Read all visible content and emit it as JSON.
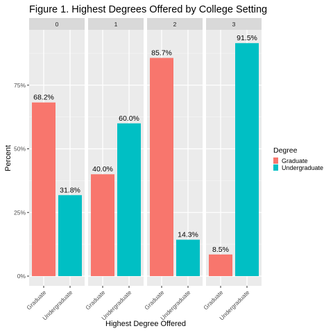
{
  "chart_data": {
    "type": "bar",
    "title": "Figure 1. Highest Degrees Offered by College Setting",
    "xlabel": "Highest Degree Offered",
    "ylabel": "Percent",
    "ylim": [
      0,
      1
    ],
    "y_ticks": [
      0,
      0.25,
      0.5,
      0.75
    ],
    "y_tick_labels": [
      "0%",
      "25%",
      "50%",
      "75%"
    ],
    "categories": [
      "Graduate",
      "Undergraduate"
    ],
    "panels": [
      {
        "label": "0",
        "values": [
          0.682,
          0.318
        ],
        "labels": [
          "68.2%",
          "31.8%"
        ]
      },
      {
        "label": "1",
        "values": [
          0.4,
          0.6
        ],
        "labels": [
          "40.0%",
          "60.0%"
        ]
      },
      {
        "label": "2",
        "values": [
          0.857,
          0.143
        ],
        "labels": [
          "85.7%",
          "14.3%"
        ]
      },
      {
        "label": "3",
        "values": [
          0.085,
          0.915
        ],
        "labels": [
          "8.5%",
          "91.5%"
        ]
      }
    ],
    "legend": {
      "title": "Degree",
      "position": "right",
      "entries": [
        {
          "name": "Graduate",
          "color": "#F8766D"
        },
        {
          "name": "Undergraduate",
          "color": "#00BFC4"
        }
      ]
    },
    "colors": {
      "panel_bg": "#EBEBEB",
      "strip_bg": "#D9D9D9",
      "grid_major": "#FFFFFF",
      "grid_minor": "#F5F5F5"
    },
    "grid": true
  }
}
